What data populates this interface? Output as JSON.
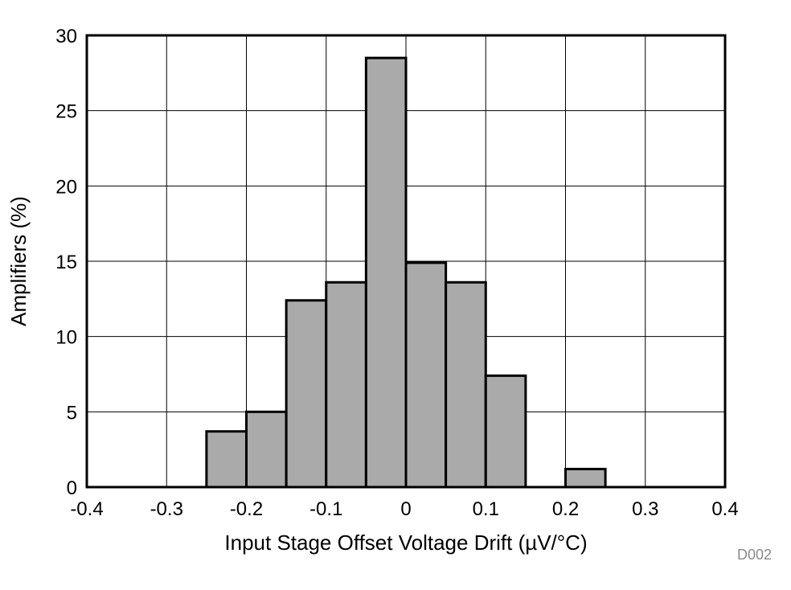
{
  "chart_data": {
    "type": "bar",
    "bin_width": 0.05,
    "x": [
      -0.225,
      -0.175,
      -0.125,
      -0.075,
      -0.025,
      0.025,
      0.075,
      0.125,
      0.225
    ],
    "values": [
      3.7,
      5.0,
      12.4,
      13.6,
      28.5,
      14.9,
      13.6,
      7.4,
      1.2
    ],
    "xlim": [
      -0.4,
      0.4
    ],
    "ylim": [
      0,
      30
    ],
    "x_ticks": [
      -0.4,
      -0.3,
      -0.2,
      -0.1,
      0,
      0.1,
      0.2,
      0.3,
      0.4
    ],
    "x_tick_labels": [
      "-0.4",
      "-0.3",
      "-0.2",
      "-0.1",
      "0",
      "0.1",
      "0.2",
      "0.3",
      "0.4"
    ],
    "y_ticks": [
      0,
      5,
      10,
      15,
      20,
      25,
      30
    ],
    "y_tick_labels": [
      "0",
      "5",
      "10",
      "15",
      "20",
      "25",
      "30"
    ],
    "xlabel": "Input Stage Offset Voltage Drift (µV/°C)",
    "ylabel": "Amplifiers (%)",
    "grid": true,
    "colors": {
      "bar_fill": "#aaaaaa",
      "bar_stroke": "#000000",
      "grid": "#000000"
    }
  },
  "figure_code": "D002"
}
